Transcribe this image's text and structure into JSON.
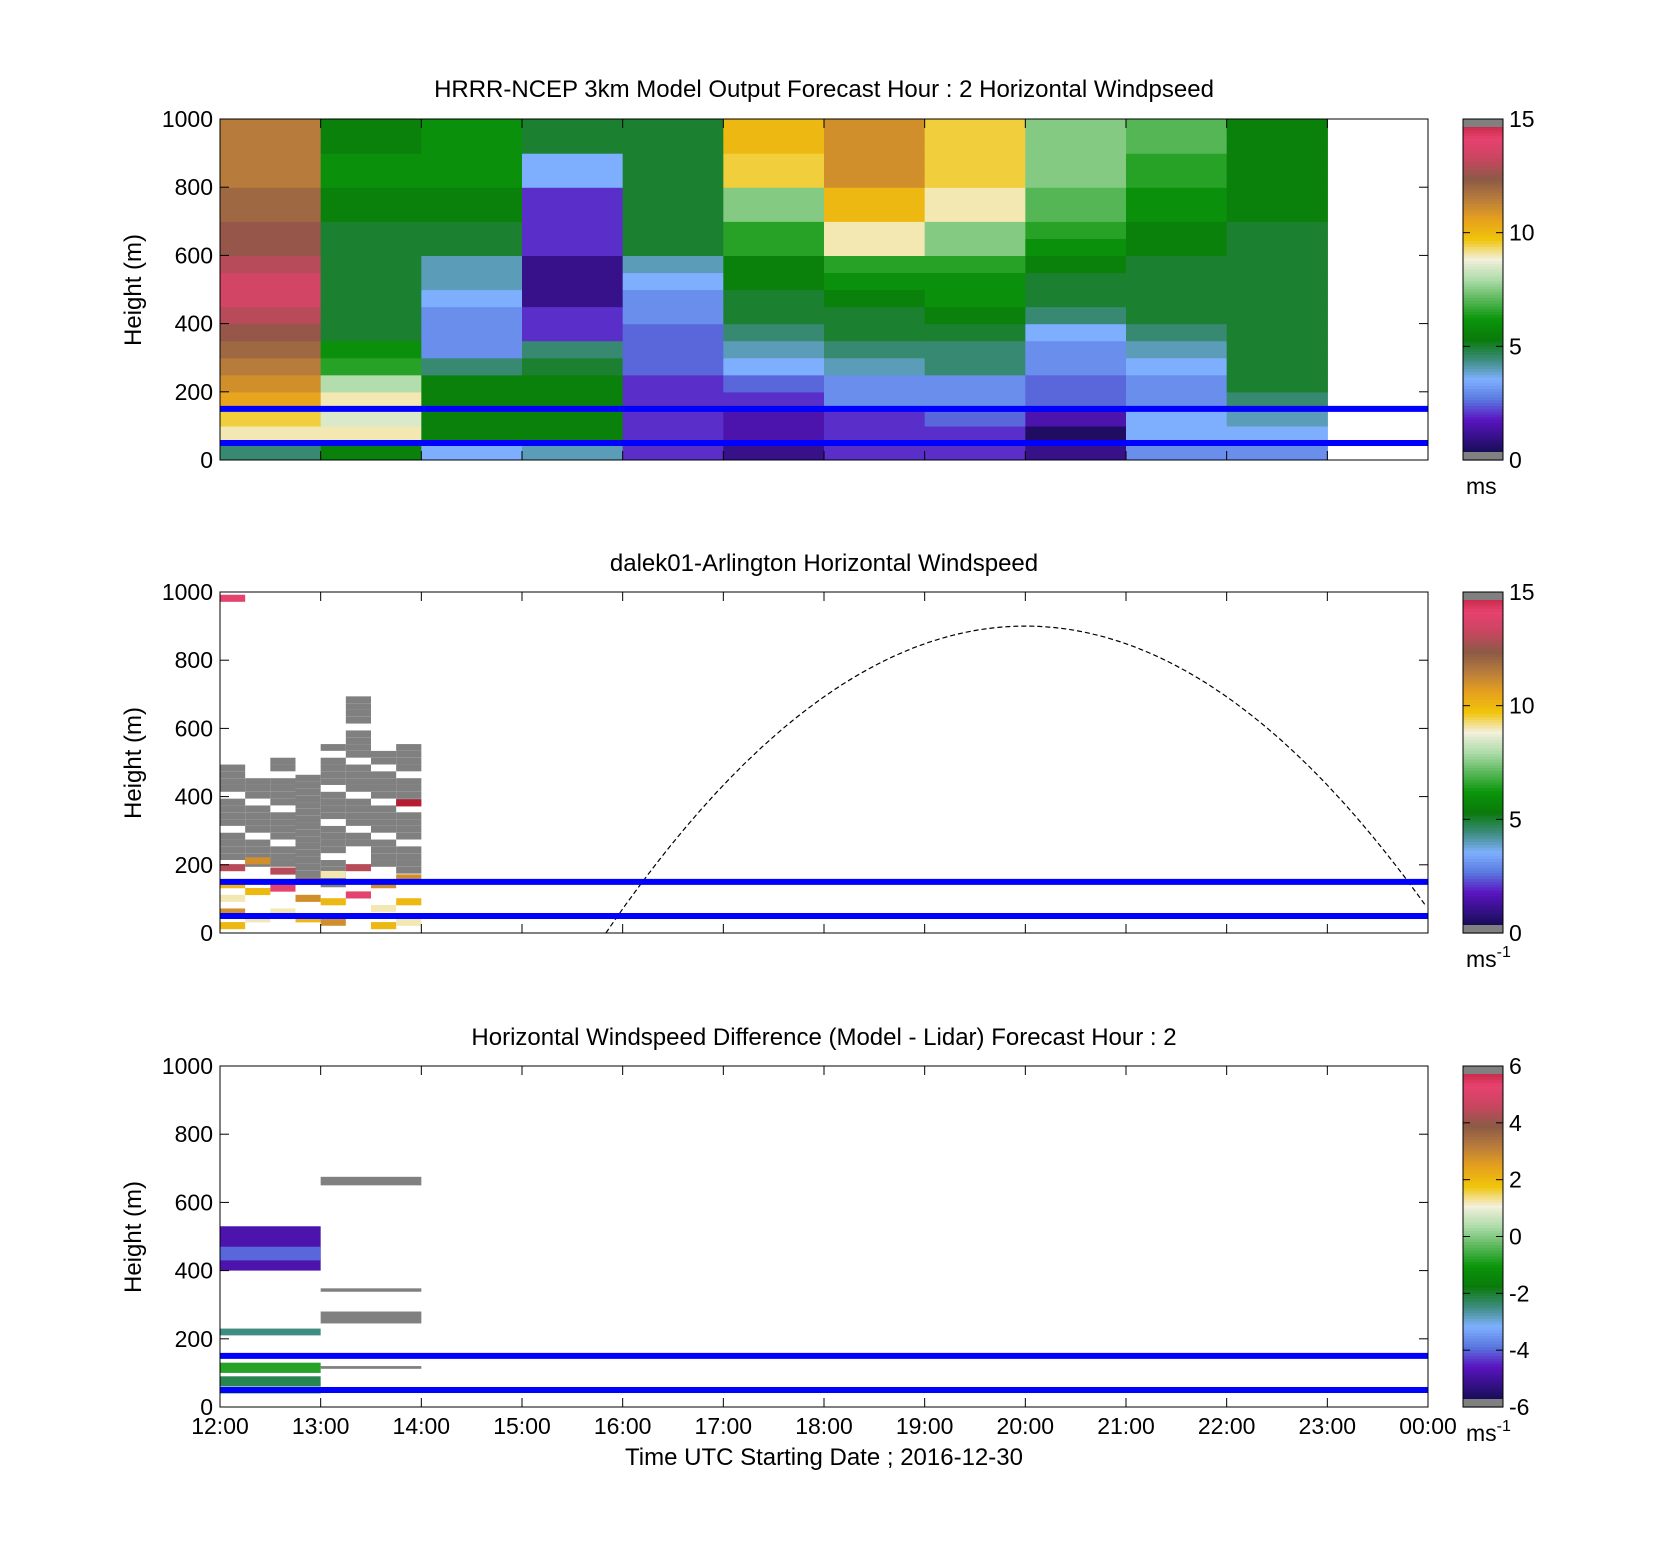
{
  "figure": {
    "xlabel": "Time UTC  Starting Date ; 2016-12-30",
    "x_tick_labels": [
      "12:00",
      "13:00",
      "14:00",
      "15:00",
      "16:00",
      "17:00",
      "18:00",
      "19:00",
      "20:00",
      "21:00",
      "22:00",
      "23:00",
      "00:00"
    ],
    "y_tick_labels": [
      "0",
      "200",
      "400",
      "600",
      "800",
      "1000"
    ],
    "ylabel": "Height (m)",
    "ref_line_color": "#0000ff",
    "colormap": [
      "#0a0a3c",
      "#301080",
      "#5a14c0",
      "#5a78e0",
      "#7fb0ff",
      "#3c8c7c",
      "#0a7a0a",
      "#0a960a",
      "#5ab85a",
      "#aedcaa",
      "#f4f0dc",
      "#f0c40a",
      "#e6a01e",
      "#b87c3c",
      "#8c5a46",
      "#c84660",
      "#e84270",
      "#b41e32"
    ],
    "panels": [
      {
        "title": "HRRR-NCEP 3km Model Output   Forecast Hour : 2 Horizontal Windpseed",
        "colorbar": {
          "min": 0,
          "max": 15,
          "tick_labels": [
            "15",
            "10",
            "5",
            "0"
          ],
          "unit": "ms",
          "unit_sup": ""
        }
      },
      {
        "title": "dalek01-Arlington  Horizontal Windspeed",
        "colorbar": {
          "min": 0,
          "max": 15,
          "tick_labels": [
            "15",
            "10",
            "5",
            "0"
          ],
          "unit": "ms",
          "unit_sup": "-1"
        }
      },
      {
        "title": "Horizontal Windspeed Difference (Model - Lidar) Forecast Hour : 2",
        "colorbar": {
          "min": -6,
          "max": 6,
          "tick_labels": [
            "6",
            "4",
            "2",
            "0",
            "-2",
            "-4",
            "-6"
          ],
          "unit": "ms",
          "unit_sup": "-1"
        }
      }
    ]
  },
  "chart_data": [
    {
      "type": "heatmap",
      "title": "HRRR-NCEP 3km Model Output   Forecast Hour : 2 Horizontal Windpseed",
      "xlabel": "",
      "ylabel": "Height (m)",
      "ylim": [
        0,
        1000
      ],
      "xlim": [
        "12:00",
        "00:00"
      ],
      "x": [
        "12:00",
        "13:00",
        "14:00",
        "15:00",
        "16:00",
        "17:00",
        "18:00",
        "19:00",
        "20:00",
        "21:00",
        "22:00"
      ],
      "y_levels": [
        25,
        75,
        125,
        175,
        225,
        275,
        325,
        375,
        425,
        475,
        525,
        575,
        625,
        675,
        725,
        775,
        825,
        875,
        925,
        975
      ],
      "values_ms": [
        [
          4.5,
          5.5,
          3.5,
          4.0,
          2.0,
          1.0,
          2.0,
          2.0,
          1.0,
          3.0,
          3.0
        ],
        [
          9.0,
          9.0,
          5.5,
          5.5,
          2.0,
          1.5,
          2.0,
          2.0,
          0.5,
          3.5,
          3.5
        ],
        [
          9.5,
          8.5,
          5.5,
          5.5,
          2.0,
          1.5,
          2.0,
          2.5,
          1.5,
          3.5,
          4.0
        ],
        [
          10.5,
          9.0,
          5.5,
          5.5,
          2.0,
          2.0,
          3.0,
          3.0,
          2.5,
          3.0,
          4.5
        ],
        [
          11.0,
          8.0,
          5.5,
          5.5,
          2.0,
          2.5,
          3.0,
          3.0,
          2.5,
          3.0,
          5.0
        ],
        [
          11.5,
          6.5,
          4.5,
          5.0,
          2.5,
          3.5,
          4.0,
          4.5,
          3.0,
          3.5,
          5.0
        ],
        [
          12.0,
          6.0,
          3.0,
          4.5,
          2.5,
          4.0,
          4.5,
          4.5,
          3.0,
          4.0,
          5.0
        ],
        [
          12.5,
          5.0,
          3.0,
          2.0,
          2.5,
          4.5,
          5.0,
          5.0,
          3.5,
          4.5,
          5.0
        ],
        [
          13.0,
          5.0,
          3.0,
          2.0,
          3.0,
          5.0,
          5.0,
          5.5,
          4.5,
          5.0,
          5.0
        ],
        [
          13.5,
          5.0,
          3.5,
          1.0,
          3.0,
          5.0,
          5.5,
          6.0,
          5.0,
          5.0,
          5.0
        ],
        [
          13.5,
          5.0,
          4.0,
          1.0,
          3.5,
          5.5,
          6.0,
          6.0,
          5.0,
          5.0,
          5.0
        ],
        [
          13.0,
          5.0,
          4.0,
          1.0,
          4.0,
          5.5,
          6.5,
          6.5,
          5.5,
          5.0,
          5.0
        ],
        [
          12.5,
          5.0,
          5.0,
          2.0,
          5.0,
          6.5,
          9.0,
          7.5,
          6.0,
          5.5,
          5.0
        ],
        [
          12.5,
          5.0,
          5.0,
          2.0,
          5.0,
          6.5,
          9.0,
          7.5,
          6.5,
          5.5,
          5.0
        ],
        [
          12.0,
          5.5,
          5.5,
          2.0,
          5.0,
          7.5,
          10.0,
          9.0,
          7.0,
          6.0,
          5.5
        ],
        [
          12.0,
          5.5,
          5.5,
          2.0,
          5.0,
          7.5,
          10.0,
          9.0,
          7.0,
          6.0,
          5.5
        ],
        [
          11.5,
          6.0,
          6.0,
          3.5,
          5.0,
          9.5,
          11.0,
          9.5,
          7.5,
          6.5,
          5.5
        ],
        [
          11.5,
          6.0,
          6.0,
          3.5,
          5.0,
          9.5,
          11.0,
          9.5,
          7.5,
          6.5,
          5.5
        ],
        [
          11.5,
          5.5,
          6.0,
          5.0,
          5.0,
          10.0,
          11.0,
          9.5,
          7.5,
          7.0,
          5.5
        ],
        [
          11.5,
          5.5,
          6.0,
          5.0,
          5.0,
          10.0,
          11.0,
          9.5,
          7.5,
          7.0,
          5.5
        ]
      ],
      "reference_lines_m": [
        150,
        50
      ]
    },
    {
      "type": "heatmap",
      "title": "dalek01-Arlington  Horizontal Windspeed",
      "xlabel": "",
      "ylabel": "Height (m)",
      "ylim": [
        0,
        1000
      ],
      "xlim": [
        "12:00",
        "00:00"
      ],
      "observation_window": [
        "12:00",
        "14:00"
      ],
      "cells_ms": [
        {
          "x": "12:00",
          "y": 20,
          "v": 10
        },
        {
          "x": "12:00",
          "y": 60,
          "v": 11
        },
        {
          "x": "12:00",
          "y": 100,
          "v": 9
        },
        {
          "x": "12:00",
          "y": 140,
          "v": 10
        },
        {
          "x": "12:00",
          "y": 190,
          "v": 13
        },
        {
          "x": "12:00",
          "y": 980,
          "v": 14
        },
        {
          "x": "12:15",
          "y": 40,
          "v": 9
        },
        {
          "x": "12:15",
          "y": 120,
          "v": 10
        },
        {
          "x": "12:15",
          "y": 210,
          "v": 11
        },
        {
          "x": "12:30",
          "y": 60,
          "v": 9
        },
        {
          "x": "12:30",
          "y": 130,
          "v": 14
        },
        {
          "x": "12:30",
          "y": 180,
          "v": 13
        },
        {
          "x": "12:45",
          "y": 40,
          "v": 10
        },
        {
          "x": "12:45",
          "y": 100,
          "v": 11
        },
        {
          "x": "12:45",
          "y": 150,
          "v": 12
        },
        {
          "x": "13:00",
          "y": 30,
          "v": 11
        },
        {
          "x": "13:00",
          "y": 90,
          "v": 10
        },
        {
          "x": "13:00",
          "y": 170,
          "v": 9
        },
        {
          "x": "13:15",
          "y": 110,
          "v": 14
        },
        {
          "x": "13:15",
          "y": 190,
          "v": 13
        },
        {
          "x": "13:30",
          "y": 20,
          "v": 10
        },
        {
          "x": "13:30",
          "y": 70,
          "v": 9
        },
        {
          "x": "13:30",
          "y": 140,
          "v": 11
        },
        {
          "x": "13:45",
          "y": 30,
          "v": 9
        },
        {
          "x": "13:45",
          "y": 90,
          "v": 10
        },
        {
          "x": "13:45",
          "y": 160,
          "v": 11
        },
        {
          "x": "13:45",
          "y": 380,
          "v": 15
        }
      ],
      "reference_lines_m": [
        150,
        50
      ],
      "dashed_curve": {
        "peak_time": "20:00",
        "peak_height": 900,
        "left_zero_time": "15:50",
        "right_end": {
          "x": "00:00",
          "y": 120
        }
      }
    },
    {
      "type": "heatmap",
      "title": "Horizontal Windspeed Difference (Model - Lidar) Forecast Hour : 2",
      "xlabel": "Time UTC  Starting Date ; 2016-12-30",
      "ylabel": "Height (m)",
      "ylim": [
        0,
        1000
      ],
      "xlim": [
        "12:00",
        "00:00"
      ],
      "bands_ms": [
        {
          "x": [
            "12:00",
            "13:00"
          ],
          "y": [
            400,
            530
          ],
          "v": -4.8
        },
        {
          "x": [
            "12:00",
            "13:00"
          ],
          "y": [
            430,
            470
          ],
          "v": -4.0
        },
        {
          "x": [
            "12:00",
            "13:00"
          ],
          "y": [
            210,
            230
          ],
          "v": -2.5
        },
        {
          "x": [
            "12:00",
            "13:00"
          ],
          "y": [
            100,
            130
          ],
          "v": -0.8
        },
        {
          "x": [
            "12:00",
            "13:00"
          ],
          "y": [
            60,
            90
          ],
          "v": -2.2
        },
        {
          "x": [
            "12:00",
            "13:00"
          ],
          "y": [
            40,
            55
          ],
          "v": -1.5
        },
        {
          "x": [
            "13:00",
            "14:00"
          ],
          "y": [
            650,
            675
          ],
          "v": null
        },
        {
          "x": [
            "13:00",
            "14:00"
          ],
          "y": [
            338,
            348
          ],
          "v": null
        },
        {
          "x": [
            "13:00",
            "14:00"
          ],
          "y": [
            245,
            280
          ],
          "v": null
        },
        {
          "x": [
            "13:00",
            "14:00"
          ],
          "y": [
            112,
            120
          ],
          "v": null
        }
      ],
      "reference_lines_m": [
        150,
        50
      ]
    }
  ]
}
